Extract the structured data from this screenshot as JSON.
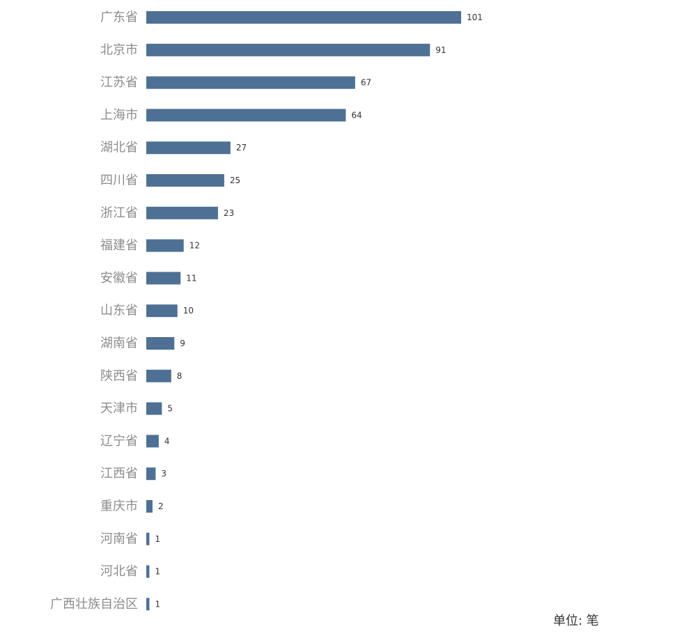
{
  "chart_data": {
    "type": "bar",
    "orientation": "horizontal",
    "categories": [
      "广东省",
      "北京市",
      "江苏省",
      "上海市",
      "湖北省",
      "四川省",
      "浙江省",
      "福建省",
      "安徽省",
      "山东省",
      "湖南省",
      "陕西省",
      "天津市",
      "辽宁省",
      "江西省",
      "重庆市",
      "河南省",
      "河北省",
      "广西壮族自治区"
    ],
    "values": [
      101,
      91,
      67,
      64,
      27,
      25,
      23,
      12,
      11,
      10,
      9,
      8,
      5,
      4,
      3,
      2,
      1,
      1,
      1
    ],
    "title": "",
    "xlabel": "",
    "ylabel": "",
    "xlim": [
      0,
      101
    ],
    "grid": false,
    "data_labels": true,
    "unit_note": "单位: 笔"
  },
  "colors": {
    "bar": "#4e7094",
    "category_text": "#8c8c8c",
    "value_text": "#333333"
  }
}
